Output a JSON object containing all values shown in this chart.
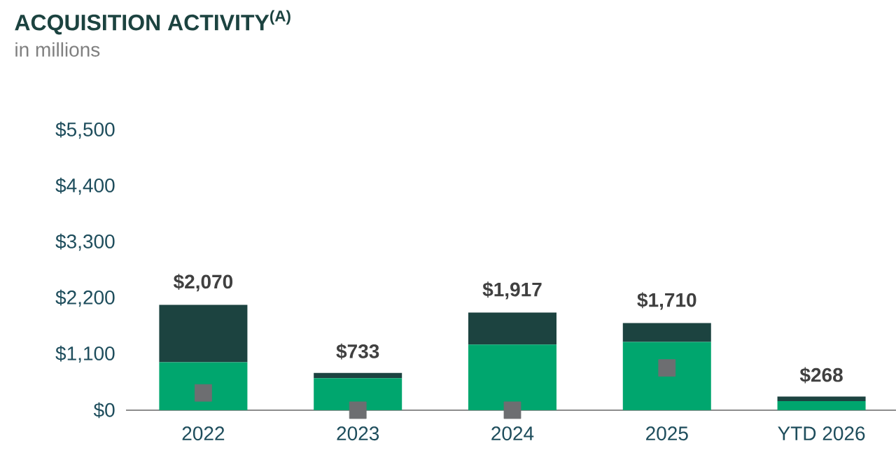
{
  "chart_data": {
    "type": "bar",
    "title": "ACQUISITION ACTIVITY$^{(A)}$",
    "subtitle": "in millions",
    "categories": [
      "2022",
      "2023",
      "2024",
      "2025",
      "YTD 2026"
    ],
    "stacked": true,
    "series": [
      {
        "type": "bar",
        "color": "#00a66e",
        "values": [
          940,
          630,
          1290,
          1340,
          180
        ]
      },
      {
        "type": "bar",
        "color": "#1c4340",
        "values": [
          1130,
          103,
          627,
          370,
          88
        ]
      },
      {
        "type": "scatter",
        "color": "#6d6e71",
        "marker": "square",
        "values": [
          340,
          0,
          0,
          830,
          null
        ]
      }
    ],
    "totals": [
      "$2,070",
      "$733",
      "$1,917",
      "$1,710",
      "$268"
    ],
    "ylim": [
      0,
      5500
    ],
    "yticks": [
      {
        "value": 0,
        "label": "$0"
      },
      {
        "value": 1100,
        "label": "$1,100"
      },
      {
        "value": 2200,
        "label": "$2,200"
      },
      {
        "value": 3300,
        "label": "$3,300"
      },
      {
        "value": 4400,
        "label": "$4,400"
      },
      {
        "value": 5500,
        "label": "$5,500"
      }
    ]
  }
}
